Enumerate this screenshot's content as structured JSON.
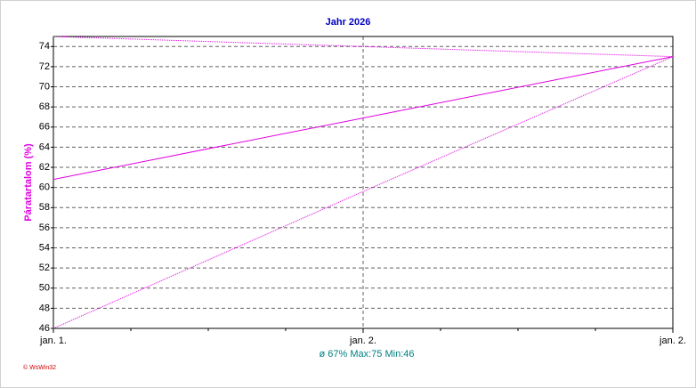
{
  "chart_data": {
    "type": "line",
    "title": "Jahr 2026",
    "y_label": "Páratartalom (%)",
    "categories": [
      "jan. 1.",
      "jan. 2.",
      "jan. 2."
    ],
    "series": [
      {
        "name": "Max",
        "color": "#e000e0",
        "style": "dotted",
        "values": [
          75,
          74,
          73
        ]
      },
      {
        "name": "Avg",
        "color": "#e000e0",
        "style": "solid",
        "values": [
          60.8,
          66.9,
          73
        ]
      },
      {
        "name": "Min",
        "color": "#e000e0",
        "style": "dotted",
        "values": [
          46,
          59.6,
          73
        ]
      }
    ],
    "ylim": [
      46,
      75
    ],
    "yticks": [
      46,
      48,
      50,
      52,
      54,
      56,
      58,
      60,
      62,
      64,
      66,
      68,
      70,
      72,
      74
    ],
    "grid": true,
    "summary": "ø 67%  Max:75  Min:46",
    "credit": "© WsWin32"
  }
}
